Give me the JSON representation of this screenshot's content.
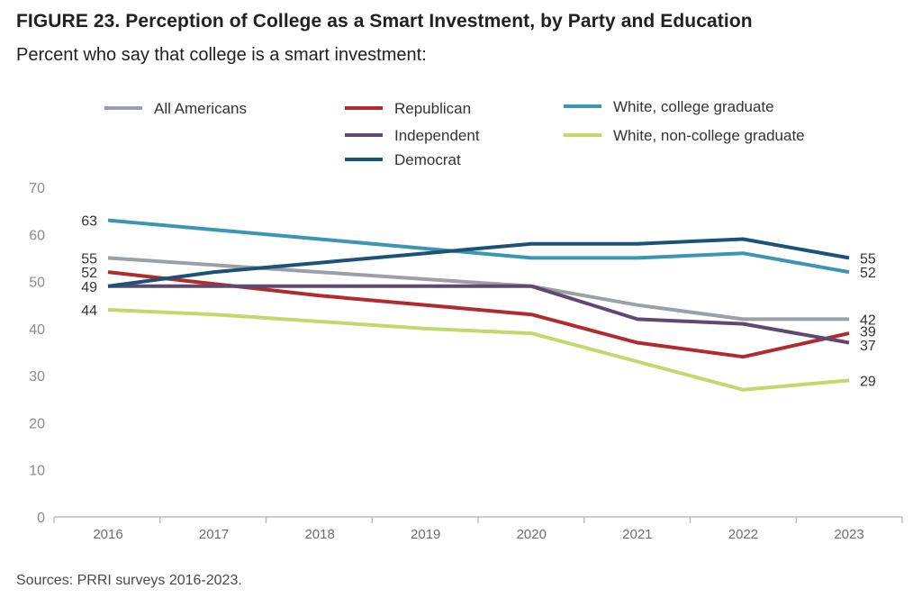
{
  "figure": {
    "title": "FIGURE 23.  Perception of College as a Smart Investment, by Party and Education",
    "subtitle": "Percent who say that college is a smart investment:",
    "source": "Sources: PRRI surveys 2016-2023."
  },
  "chart_data": {
    "type": "line",
    "title": "FIGURE 23.  Perception of College as a Smart Investment, by Party and Education",
    "subtitle": "Percent who say that college is a smart investment:",
    "xlabel": "",
    "ylabel": "",
    "x": [
      "2016",
      "2017",
      "2018",
      "2019",
      "2020",
      "2021",
      "2022",
      "2023"
    ],
    "ylim": [
      0,
      70
    ],
    "yticks": [
      "0",
      "10",
      "20",
      "30",
      "40",
      "50",
      "60",
      "70"
    ],
    "grid": false,
    "legend_position": "top",
    "series": [
      {
        "name": "All Americans",
        "color": "#9aa0a6",
        "values": [
          55,
          53.5,
          52,
          50.5,
          49,
          45,
          42,
          42
        ],
        "labels": {
          "start": "55",
          "end": "42"
        }
      },
      {
        "name": "Republican",
        "color": "#b22a2e",
        "values": [
          52,
          49.5,
          47,
          45,
          43,
          37,
          34,
          39
        ],
        "labels": {
          "start": "52",
          "end": "39"
        }
      },
      {
        "name": "White, college graduate",
        "color": "#3a96b2",
        "values": [
          63,
          61,
          59,
          57,
          55,
          55,
          56,
          52
        ],
        "labels": {
          "start": "63",
          "end": "52"
        }
      },
      {
        "name": "Independent",
        "color": "#5e4a6e",
        "values": [
          49,
          49,
          49,
          49,
          49,
          42,
          41,
          37
        ],
        "labels": {
          "start": "49",
          "end": "37"
        }
      },
      {
        "name": "White, non-college graduate",
        "color": "#c3d86c",
        "values": [
          44,
          43,
          41.5,
          40,
          39,
          33,
          27,
          29
        ],
        "labels": {
          "start": "44",
          "end": "29"
        }
      },
      {
        "name": "Democrat",
        "color": "#1c5277",
        "values": [
          49,
          52,
          54,
          56,
          58,
          58,
          59,
          55
        ],
        "labels": {
          "start": "",
          "end": "55"
        }
      }
    ]
  }
}
